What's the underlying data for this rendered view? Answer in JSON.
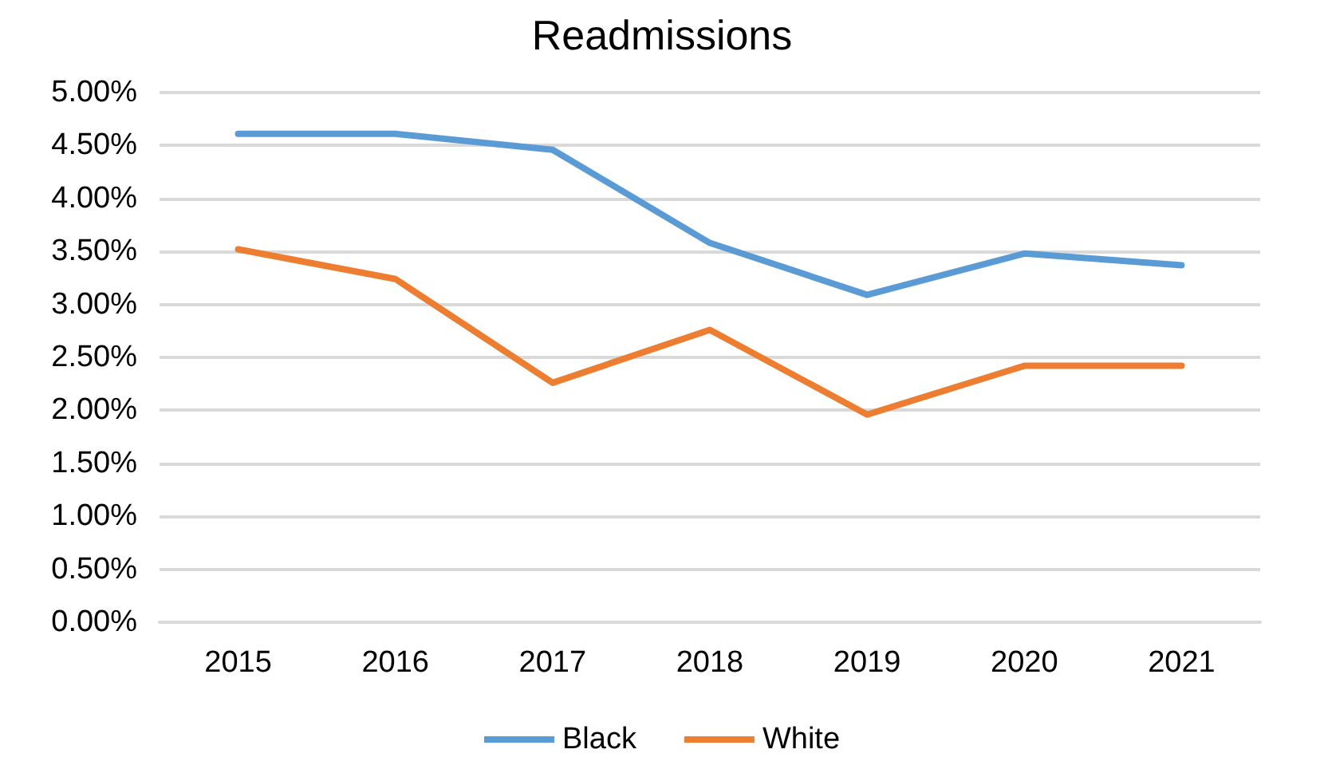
{
  "chart_data": {
    "type": "line",
    "title": "Readmissions",
    "categories": [
      "2015",
      "2016",
      "2017",
      "2018",
      "2019",
      "2020",
      "2021"
    ],
    "series": [
      {
        "name": "Black",
        "color": "#5b9bd5",
        "values": [
          4.61,
          4.61,
          4.46,
          3.58,
          3.09,
          3.48,
          3.37
        ]
      },
      {
        "name": "White",
        "color": "#ed7d31",
        "values": [
          3.52,
          3.24,
          2.26,
          2.76,
          1.96,
          2.42,
          2.42
        ]
      }
    ],
    "ylim": [
      0,
      5
    ],
    "yticks": [
      {
        "value": 0,
        "label": "0.00%"
      },
      {
        "value": 0.5,
        "label": "0.50%"
      },
      {
        "value": 1,
        "label": "1.00%"
      },
      {
        "value": 1.5,
        "label": "1.50%"
      },
      {
        "value": 2,
        "label": "2.00%"
      },
      {
        "value": 2.5,
        "label": "2.50%"
      },
      {
        "value": 3,
        "label": "3.00%"
      },
      {
        "value": 3.5,
        "label": "3.50%"
      },
      {
        "value": 4,
        "label": "4.00%"
      },
      {
        "value": 4.5,
        "label": "4.50%"
      },
      {
        "value": 5,
        "label": "5.00%"
      }
    ],
    "grid": "y",
    "legend": "bottom",
    "marker": "none",
    "line_style": "solid"
  }
}
